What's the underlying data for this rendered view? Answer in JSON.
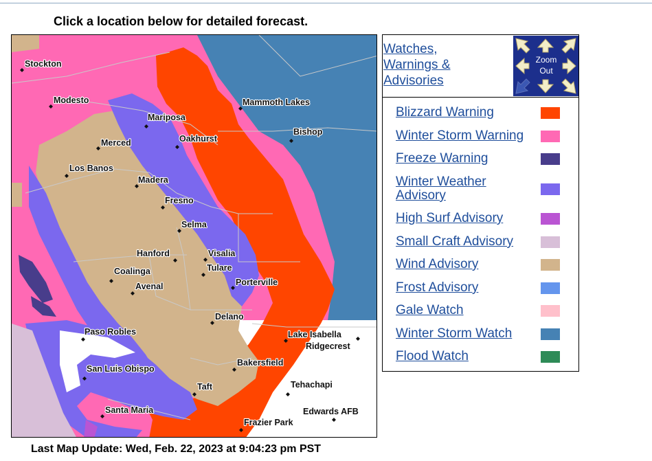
{
  "page_title": "Click a location below for detailed forecast.",
  "last_update": "Last Map Update: Wed, Feb. 22, 2023 at 9:04:23 pm PST",
  "watches_link": [
    "Watches,",
    "Warnings &",
    "Advisories"
  ],
  "zoom_out": [
    "Zoom",
    "Out"
  ],
  "legend": [
    {
      "label": "Blizzard Warning",
      "color": "#ff4500"
    },
    {
      "label": "Winter Storm Warning",
      "color": "#ff69b4"
    },
    {
      "label": "Freeze Warning",
      "color": "#483d8b"
    },
    {
      "label": "Winter Weather Advisory",
      "color": "#7b68ee"
    },
    {
      "label": "High Surf Advisory",
      "color": "#ba55d3"
    },
    {
      "label": "Small Craft Advisory",
      "color": "#d8bfd8"
    },
    {
      "label": "Wind Advisory",
      "color": "#d2b48c"
    },
    {
      "label": "Frost Advisory",
      "color": "#6495ed"
    },
    {
      "label": "Gale Watch",
      "color": "#ffc0cb"
    },
    {
      "label": "Winter Storm Watch",
      "color": "#4682b4"
    },
    {
      "label": "Flood Watch",
      "color": "#2e8b57"
    }
  ],
  "cities": [
    "Stockton",
    "Modesto",
    "Mariposa",
    "Mammoth Lakes",
    "Bishop",
    "Merced",
    "Oakhurst",
    "Los Banos",
    "Madera",
    "Fresno",
    "Selma",
    "Hanford",
    "Visalia",
    "Tulare",
    "Coalinga",
    "Avenal",
    "Porterville",
    "Delano",
    "Paso Robles",
    "Lake Isabella",
    "Ridgecrest",
    "San Luis Obispo",
    "Bakersfield",
    "Taft",
    "Tehachapi",
    "Santa Maria",
    "Edwards AFB",
    "Frazier Park"
  ]
}
